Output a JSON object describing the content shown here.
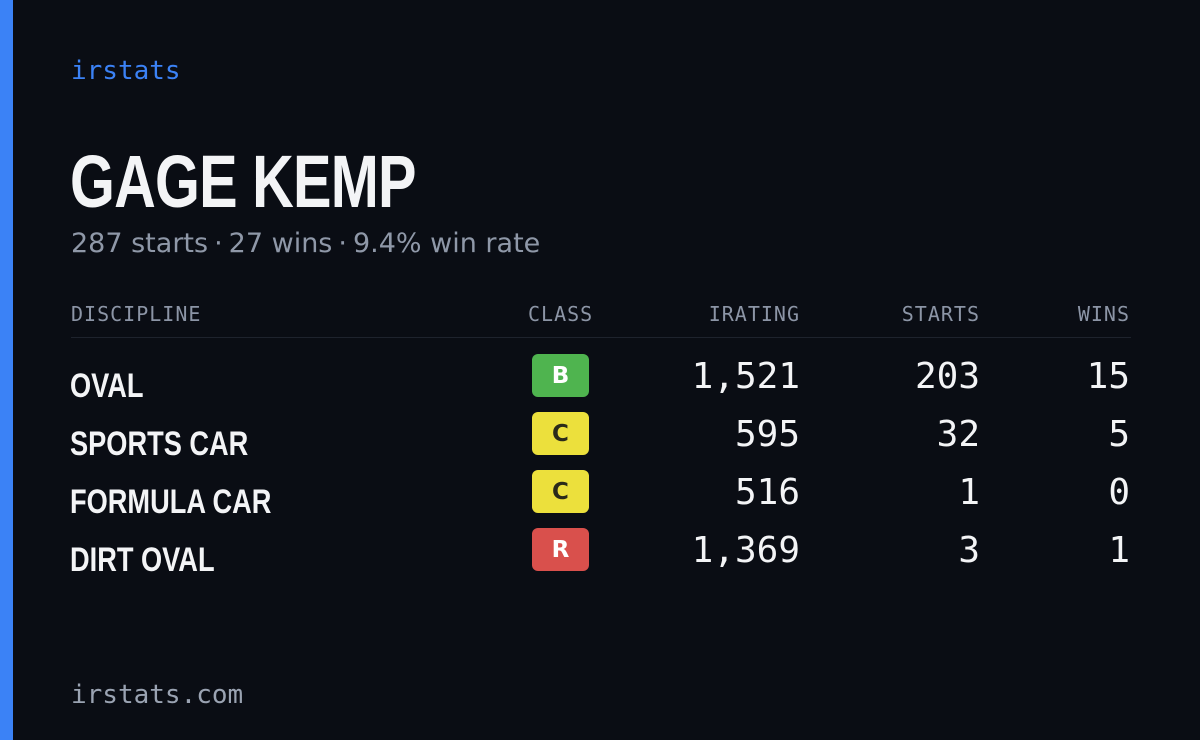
{
  "brand": {
    "name": "irstats",
    "color": "#3b82f6"
  },
  "driver": {
    "name": "GAGE KEMP",
    "starts_text": "287 starts",
    "wins_text": "27 wins",
    "win_rate_text": "9.4% win rate",
    "separator": "·"
  },
  "table": {
    "headers": {
      "discipline": "DISCIPLINE",
      "class": "CLASS",
      "irating": "IRATING",
      "starts": "STARTS",
      "wins": "WINS"
    },
    "rows": [
      {
        "discipline": "OVAL",
        "class": "B",
        "class_bg": "#4fb44f",
        "class_fg": "#ffffff",
        "irating": "1,521",
        "starts": "203",
        "wins": "15"
      },
      {
        "discipline": "SPORTS CAR",
        "class": "C",
        "class_bg": "#ece03c",
        "class_fg": "#2a2a1a",
        "irating": "595",
        "starts": "32",
        "wins": "5"
      },
      {
        "discipline": "FORMULA CAR",
        "class": "C",
        "class_bg": "#ece03c",
        "class_fg": "#2a2a1a",
        "irating": "516",
        "starts": "1",
        "wins": "0"
      },
      {
        "discipline": "DIRT OVAL",
        "class": "R",
        "class_bg": "#d9504c",
        "class_fg": "#ffffff",
        "irating": "1,369",
        "starts": "3",
        "wins": "1"
      }
    ]
  },
  "footer": {
    "url": "irstats.com"
  }
}
